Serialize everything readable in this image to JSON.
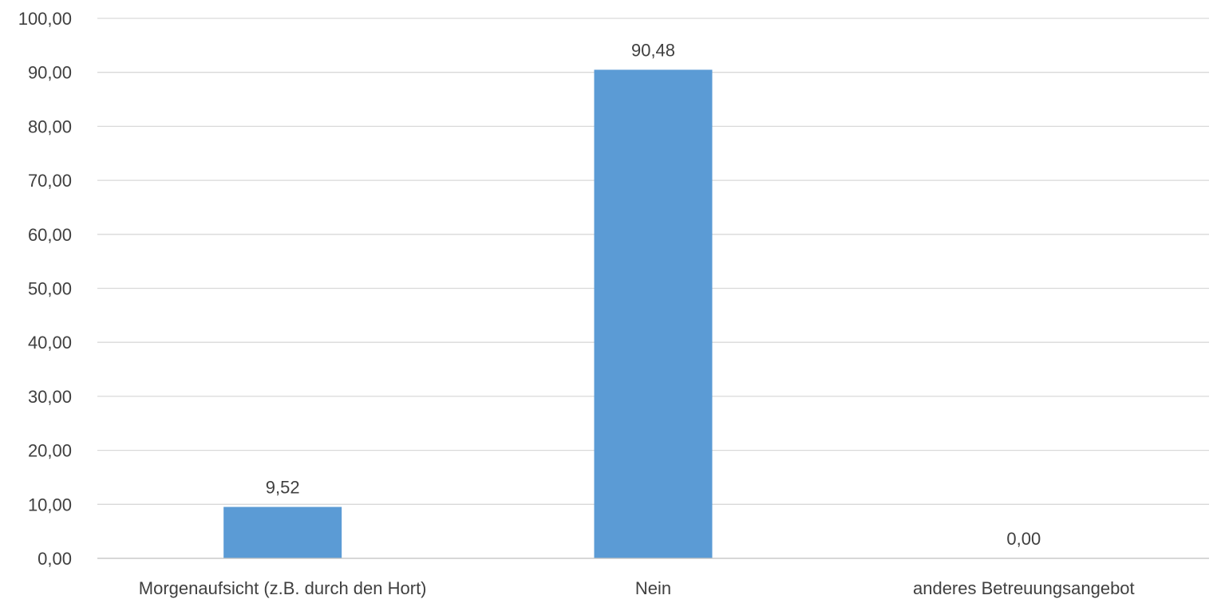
{
  "chart_data": {
    "type": "bar",
    "categories": [
      "Morgenaufsicht (z.B. durch den Hort)",
      "Nein",
      "anderes Betreuungsangebot"
    ],
    "values": [
      9.52,
      90.48,
      0.0
    ],
    "value_labels": [
      "9,52",
      "90,48",
      "0,00"
    ],
    "title": "",
    "xlabel": "",
    "ylabel": "",
    "ylim": [
      0,
      100
    ],
    "yticks": [
      0,
      10,
      20,
      30,
      40,
      50,
      60,
      70,
      80,
      90,
      100
    ],
    "ytick_labels": [
      "0,00",
      "10,00",
      "20,00",
      "30,00",
      "40,00",
      "50,00",
      "60,00",
      "70,00",
      "80,00",
      "90,00",
      "100,00"
    ],
    "grid": true,
    "legend": "none",
    "colors": {
      "bar": "#5b9bd5",
      "grid": "#d9d9d9",
      "axis": "#bfbfbf",
      "text": "#404040"
    }
  }
}
